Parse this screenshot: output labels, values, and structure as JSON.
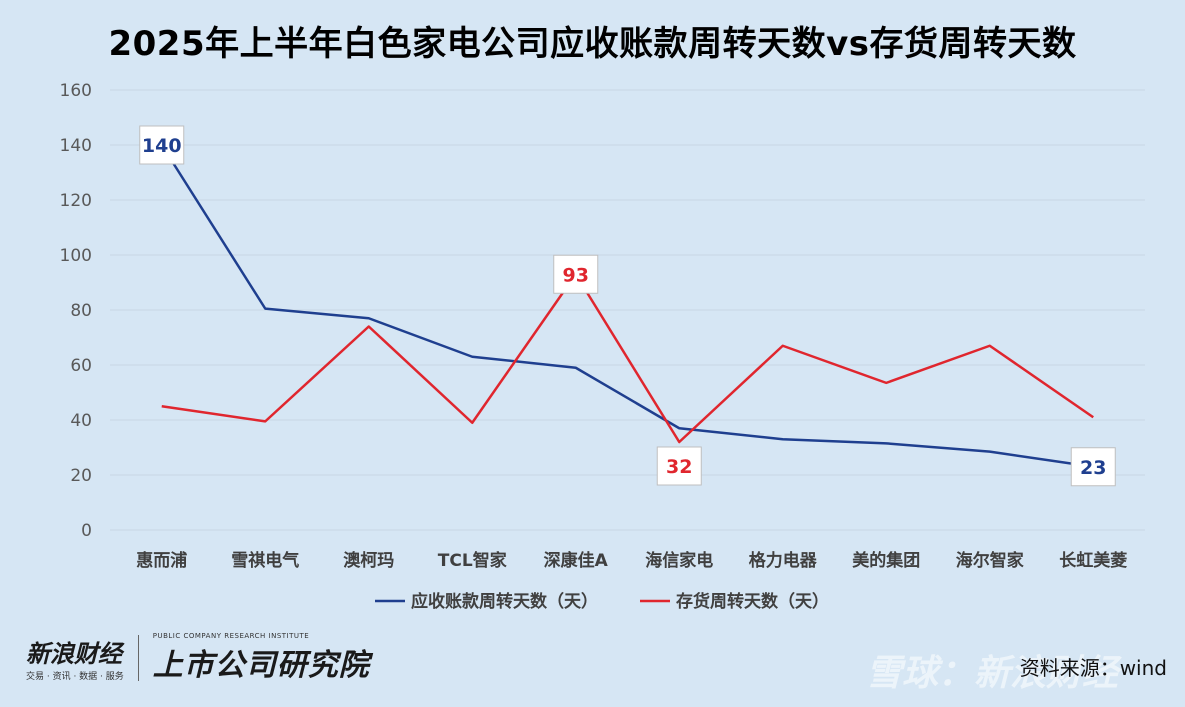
{
  "title": "2025年上半年白色家电公司应收账款周转天数vs存货周转天数",
  "source": "资料来源：wind",
  "watermarks": {
    "sina_cn": "新浪财经",
    "sina_sub": "交易 · 资讯 · 数据 · 服务",
    "institute": "上市公司研究院",
    "institute_en": "PUBLIC COMPANY RESEARCH INSTITUTE",
    "xueqiu": "雪球：新浪财经"
  },
  "colors": {
    "background": "#d6e6f4",
    "receivable": "#1f3f8f",
    "inventory": "#e0262e",
    "grid": "#c8d6e4"
  },
  "chart_data": {
    "type": "line",
    "title": "2025年上半年白色家电公司应收账款周转天数vs存货周转天数",
    "categories": [
      "惠而浦",
      "雪祺电气",
      "澳柯玛",
      "TCL智家",
      "深康佳A",
      "海信家电",
      "格力电器",
      "美的集团",
      "海尔智家",
      "长虹美菱"
    ],
    "ylim": [
      0,
      160
    ],
    "yticks": [
      0,
      20,
      40,
      60,
      80,
      100,
      120,
      140,
      160
    ],
    "grid": true,
    "legend_position": "bottom",
    "series": [
      {
        "name": "应收账款周转天数（天）",
        "color": "#1f3f8f",
        "values": [
          140,
          80.5,
          77,
          63,
          59,
          37,
          33,
          31.5,
          28.5,
          23
        ],
        "labels": [
          {
            "index": 0,
            "text": "140"
          },
          {
            "index": 9,
            "text": "23"
          }
        ]
      },
      {
        "name": "存货周转天数（天）",
        "color": "#e0262e",
        "values": [
          45,
          39.5,
          74,
          39,
          93,
          32,
          67,
          53.5,
          67,
          41
        ],
        "labels": [
          {
            "index": 4,
            "text": "93"
          },
          {
            "index": 5,
            "text": "32"
          }
        ]
      }
    ]
  }
}
